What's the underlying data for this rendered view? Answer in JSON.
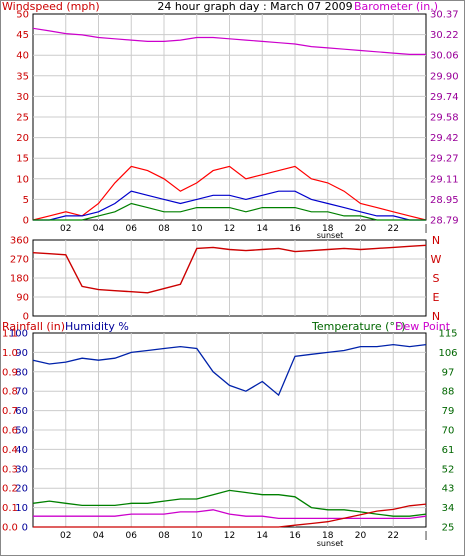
{
  "header": {
    "title": "24 hour graph day : March 07 2009",
    "wind_label": "Windspeed (mph)",
    "baro_label": "Barometer (in.)",
    "rain_label": "Rainfall (in)",
    "humidity_label": "Humidity %",
    "temp_label": "Temperature (°F)",
    "dew_label": "Dew Point",
    "sunset_label": "sunset"
  },
  "colors": {
    "wind_max": "#ff0000",
    "wind_hi": "#0000cc",
    "wind_avg": "#008000",
    "baro": "#cc00cc",
    "wind_dir": "#cc0000",
    "humidity": "#0022aa",
    "temperature": "#008000",
    "dewpoint": "#cc00cc",
    "rain": "#cc0000",
    "grid": "#cccccc",
    "axis_left": "#cc0000",
    "axis_right_baro": "#990099",
    "axis_right_temp": "#006600",
    "axis_humidity": "#000099"
  },
  "chart_data": [
    {
      "type": "line",
      "name": "wind-barometer",
      "xlabel": "",
      "x_ticks": [
        "02",
        "04",
        "06",
        "08",
        "10",
        "12",
        "14",
        "16",
        "18",
        "20",
        "22",
        "|"
      ],
      "y_left_ticks": [
        "0",
        "5",
        "10",
        "15",
        "20",
        "25",
        "30",
        "35",
        "40",
        "45",
        "50"
      ],
      "y_left_lim": [
        0,
        50
      ],
      "y_right_ticks": [
        "28.79",
        "28.95",
        "29.11",
        "29.27",
        "29.42",
        "29.58",
        "29.74",
        "29.90",
        "30.06",
        "30.22",
        "30.37"
      ],
      "y_right_lim": [
        28.79,
        30.37
      ],
      "hours": [
        0,
        1,
        2,
        3,
        4,
        5,
        6,
        7,
        8,
        9,
        10,
        11,
        12,
        13,
        14,
        15,
        16,
        17,
        18,
        19,
        20,
        21,
        22,
        23,
        24
      ],
      "series": [
        {
          "role": "barometer",
          "values": [
            30.26,
            30.24,
            30.22,
            30.21,
            30.19,
            30.18,
            30.17,
            30.16,
            30.16,
            30.17,
            30.19,
            30.19,
            30.18,
            30.17,
            30.16,
            30.15,
            30.14,
            30.12,
            30.11,
            30.1,
            30.09,
            30.08,
            30.07,
            30.06,
            30.06
          ]
        },
        {
          "role": "wind-max",
          "values": [
            0,
            1,
            2,
            1,
            4,
            9,
            13,
            12,
            10,
            7,
            9,
            12,
            13,
            10,
            11,
            12,
            13,
            10,
            9,
            7,
            4,
            3,
            2,
            1,
            0
          ]
        },
        {
          "role": "wind-hi",
          "values": [
            0,
            0,
            1,
            1,
            2,
            4,
            7,
            6,
            5,
            4,
            5,
            6,
            6,
            5,
            6,
            7,
            7,
            5,
            4,
            3,
            2,
            1,
            1,
            0,
            0
          ]
        },
        {
          "role": "wind-avg",
          "values": [
            0,
            0,
            0,
            0,
            1,
            2,
            4,
            3,
            2,
            2,
            3,
            3,
            3,
            2,
            3,
            3,
            3,
            2,
            2,
            1,
            1,
            0,
            0,
            0,
            0
          ]
        }
      ]
    },
    {
      "type": "line",
      "name": "wind-direction",
      "y_left_ticks": [
        "0",
        "90",
        "180",
        "270",
        "360"
      ],
      "y_left_lim": [
        0,
        360
      ],
      "y_right_ticks": [
        "N",
        "E",
        "S",
        "W",
        "N"
      ],
      "hours": [
        0,
        1,
        2,
        3,
        4,
        5,
        6,
        7,
        8,
        9,
        10,
        11,
        12,
        13,
        14,
        15,
        16,
        17,
        18,
        19,
        20,
        21,
        22,
        23,
        24
      ],
      "series": [
        {
          "role": "direction",
          "values": [
            300,
            295,
            290,
            140,
            125,
            120,
            115,
            110,
            130,
            150,
            320,
            325,
            315,
            310,
            315,
            320,
            305,
            310,
            315,
            320,
            315,
            320,
            325,
            330,
            335
          ]
        }
      ]
    },
    {
      "type": "line",
      "name": "humidity-temperature-rain",
      "x_ticks": [
        "02",
        "04",
        "06",
        "08",
        "10",
        "12",
        "14",
        "16",
        "18",
        "20",
        "22",
        "|"
      ],
      "y_rain_ticks": [
        "0.0",
        "0.1",
        "0.2",
        "0.3",
        "0.4",
        "0.6",
        "0.7",
        "0.8",
        "0.9",
        "1.0",
        "1.1"
      ],
      "y_humidity_ticks": [
        "0",
        "10",
        "20",
        "30",
        "40",
        "50",
        "60",
        "70",
        "80",
        "90",
        "100"
      ],
      "y_humidity_lim": [
        0,
        100
      ],
      "y_temp_ticks": [
        "25",
        "34",
        "43",
        "52",
        "61",
        "70",
        "79",
        "88",
        "97",
        "106",
        "115"
      ],
      "y_temp_lim": [
        25,
        115
      ],
      "hours": [
        0,
        1,
        2,
        3,
        4,
        5,
        6,
        7,
        8,
        9,
        10,
        11,
        12,
        13,
        14,
        15,
        16,
        17,
        18,
        19,
        20,
        21,
        22,
        23,
        24
      ],
      "series": [
        {
          "role": "humidity",
          "values": [
            86,
            84,
            85,
            87,
            86,
            87,
            90,
            91,
            92,
            93,
            92,
            80,
            73,
            70,
            75,
            68,
            88,
            89,
            90,
            91,
            93,
            93,
            94,
            93,
            94
          ]
        },
        {
          "role": "temperature",
          "values": [
            36,
            37,
            36,
            35,
            35,
            35,
            36,
            36,
            37,
            38,
            38,
            40,
            42,
            41,
            40,
            40,
            39,
            34,
            33,
            33,
            32,
            31,
            30,
            30,
            31
          ]
        },
        {
          "role": "dewpoint",
          "values": [
            30,
            30,
            30,
            30,
            30,
            30,
            31,
            31,
            31,
            32,
            32,
            33,
            31,
            30,
            30,
            29,
            29,
            29,
            29,
            29,
            29,
            29,
            29,
            29,
            30
          ]
        },
        {
          "role": "rain",
          "values": [
            0.0,
            0.0,
            0.0,
            0.0,
            0.0,
            0.0,
            0.0,
            0.0,
            0.0,
            0.0,
            0.0,
            0.0,
            0.0,
            0.0,
            0.0,
            0.0,
            0.01,
            0.02,
            0.03,
            0.05,
            0.07,
            0.09,
            0.1,
            0.12,
            0.13
          ]
        }
      ]
    }
  ]
}
